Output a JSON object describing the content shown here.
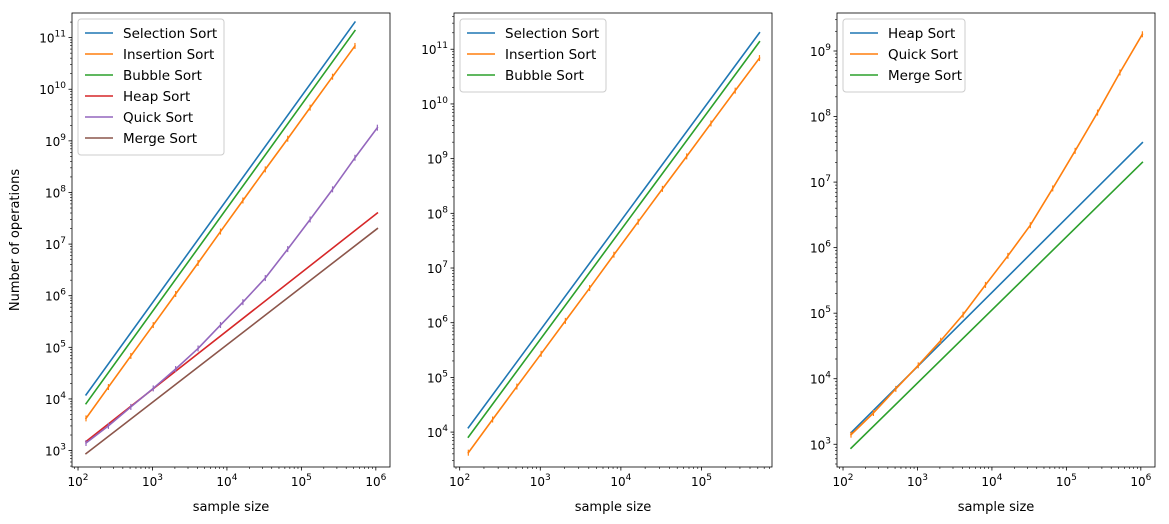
{
  "figure": {
    "ylabel": "Number of operations",
    "xlabel": "sample size"
  },
  "chart_data": [
    {
      "type": "line",
      "title": "",
      "xlabel": "sample size",
      "ylabel": "Number of operations",
      "xscale": "log",
      "yscale": "log",
      "xlim": [
        83,
        1550000
      ],
      "ylim": [
        480,
        300000000000
      ],
      "xticks": [
        100,
        1000,
        10000,
        100000,
        1000000
      ],
      "yticks": [
        1000,
        10000,
        100000,
        1000000,
        10000000,
        100000000,
        1000000000,
        10000000000,
        100000000000
      ],
      "legend": "upper-left",
      "grid": false,
      "series": [
        {
          "name": "Selection Sort",
          "color": "#1f77b4",
          "x": [
            128,
            524288
          ],
          "y": [
            12000,
            200000000000
          ]
        },
        {
          "name": "Insertion Sort",
          "color": "#ff7f0e",
          "x": [
            128,
            256,
            512,
            1024,
            2048,
            4096,
            8192,
            16384,
            32768,
            65536,
            131072,
            262144,
            524288
          ],
          "y": [
            4200,
            17000,
            68000,
            270000,
            1080000,
            4300000,
            17500000,
            70000000,
            280000000,
            1100000000,
            4400000000,
            17500000000,
            69000000000
          ]
        },
        {
          "name": "Bubble Sort",
          "color": "#2ca02c",
          "x": [
            128,
            524288
          ],
          "y": [
            8100,
            137000000000
          ]
        },
        {
          "name": "Heap Sort",
          "color": "#d62728",
          "x": [
            128,
            1048576
          ],
          "y": [
            1500,
            40000000
          ]
        },
        {
          "name": "Quick Sort",
          "color": "#9467bd",
          "x": [
            128,
            256,
            512,
            1024,
            2048,
            4096,
            8192,
            16384,
            32768,
            65536,
            131072,
            262144,
            524288,
            1048576
          ],
          "y": [
            1400,
            3000,
            7000,
            16000,
            38000,
            95000,
            270000,
            750000,
            2200000,
            8000000,
            30000000,
            115000000,
            470000000,
            1800000000
          ]
        },
        {
          "name": "Merge Sort",
          "color": "#8c564b",
          "x": [
            128,
            1048576
          ],
          "y": [
            870,
            20000000
          ]
        }
      ]
    },
    {
      "type": "line",
      "title": "",
      "xlabel": "sample size",
      "ylabel": "",
      "xscale": "log",
      "yscale": "log",
      "xlim": [
        85,
        750000
      ],
      "ylim": [
        2300,
        460000000000
      ],
      "xticks": [
        100,
        1000,
        10000,
        100000
      ],
      "yticks": [
        10000,
        100000,
        1000000,
        10000000,
        100000000,
        1000000000,
        10000000000,
        100000000000
      ],
      "legend": "upper-left",
      "grid": false,
      "series": [
        {
          "name": "Selection Sort",
          "color": "#1f77b4",
          "x": [
            128,
            524288
          ],
          "y": [
            12000,
            200000000000
          ]
        },
        {
          "name": "Insertion Sort",
          "color": "#ff7f0e",
          "x": [
            128,
            256,
            512,
            1024,
            2048,
            4096,
            8192,
            16384,
            32768,
            65536,
            131072,
            262144,
            524288
          ],
          "y": [
            4200,
            17000,
            68000,
            270000,
            1080000,
            4300000,
            17500000,
            70000000,
            280000000,
            1100000000,
            4400000000,
            17500000000,
            69000000000
          ]
        },
        {
          "name": "Bubble Sort",
          "color": "#2ca02c",
          "x": [
            128,
            524288
          ],
          "y": [
            8100,
            137000000000
          ]
        }
      ]
    },
    {
      "type": "line",
      "title": "",
      "xlabel": "sample size",
      "ylabel": "",
      "xscale": "log",
      "yscale": "log",
      "xlim": [
        83,
        1550000
      ],
      "ylim": [
        450,
        3800000000
      ],
      "xticks": [
        100,
        1000,
        10000,
        100000,
        1000000
      ],
      "yticks": [
        1000,
        10000,
        100000,
        1000000,
        10000000,
        100000000,
        1000000000
      ],
      "legend": "upper-left",
      "grid": false,
      "series": [
        {
          "name": "Heap Sort",
          "color": "#1f77b4",
          "x": [
            128,
            1048576
          ],
          "y": [
            1500,
            40000000
          ]
        },
        {
          "name": "Quick Sort",
          "color": "#ff7f0e",
          "x": [
            128,
            256,
            512,
            1024,
            2048,
            4096,
            8192,
            16384,
            32768,
            65536,
            131072,
            262144,
            524288,
            1048576
          ],
          "y": [
            1400,
            3000,
            7000,
            16000,
            38000,
            95000,
            270000,
            750000,
            2200000,
            8000000,
            30000000,
            115000000,
            470000000,
            1800000000
          ]
        },
        {
          "name": "Merge Sort",
          "color": "#2ca02c",
          "x": [
            128,
            1048576
          ],
          "y": [
            870,
            20000000
          ]
        }
      ]
    }
  ]
}
